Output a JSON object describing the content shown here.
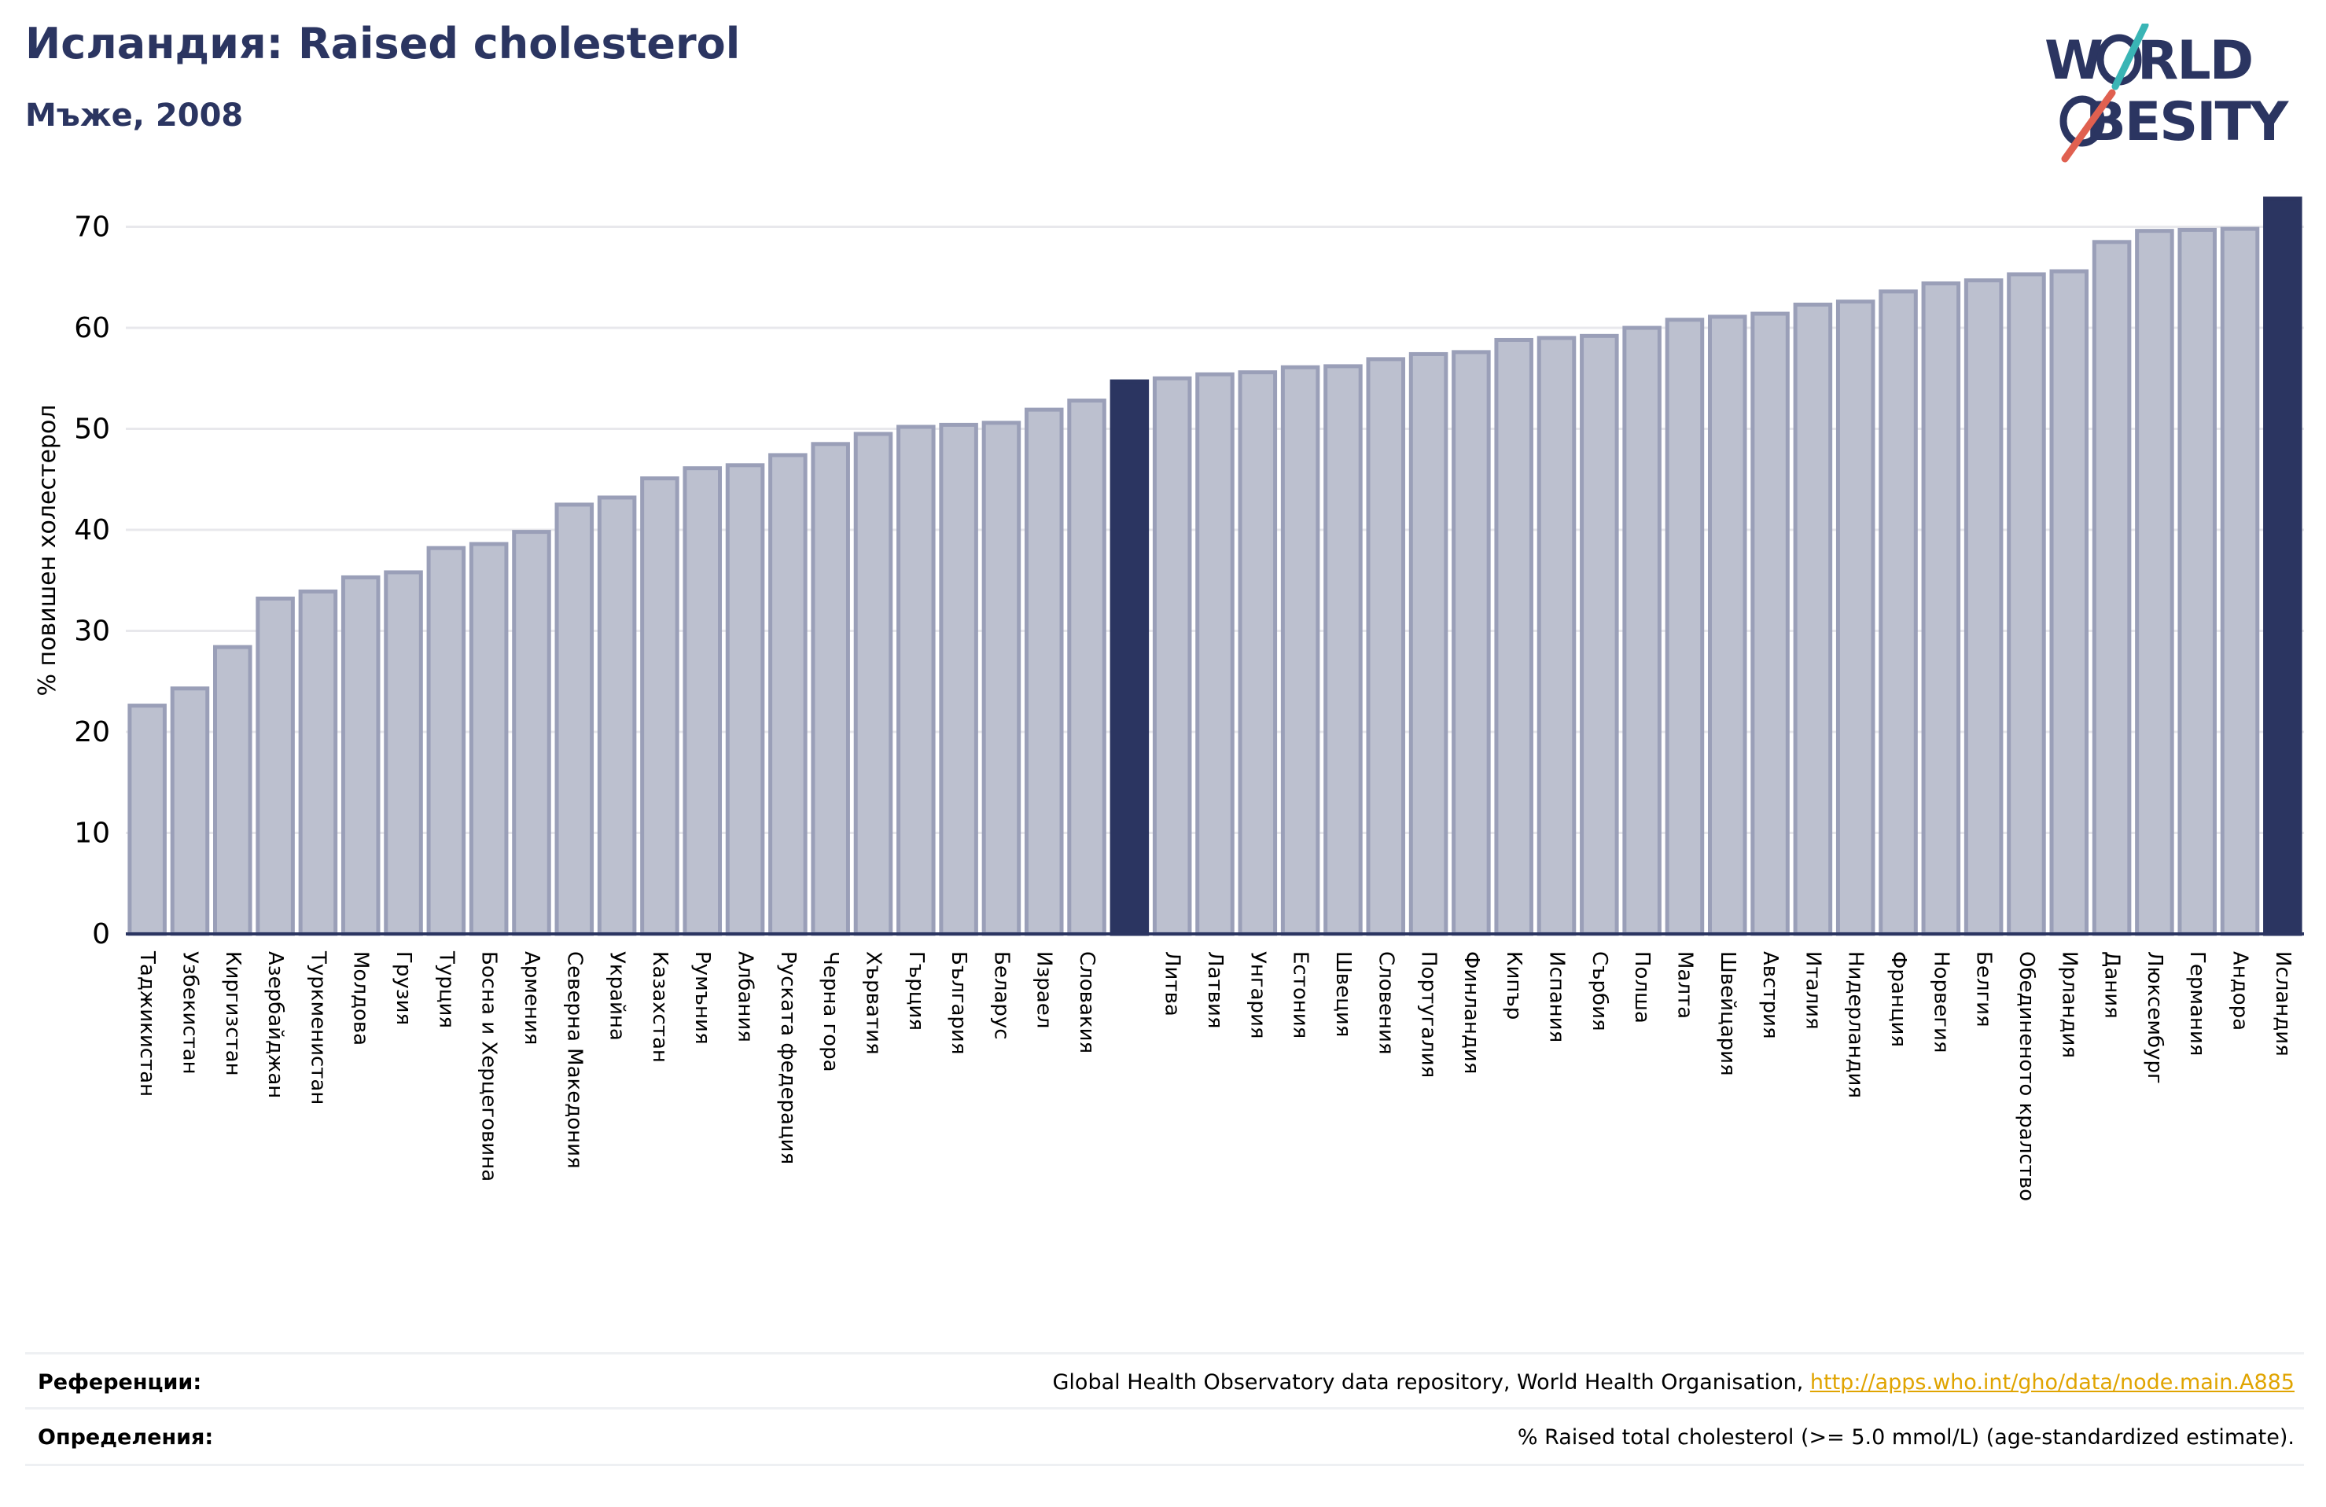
{
  "header": {
    "title": "Исландия: Raised cholesterol",
    "subtitle": "Мъже, 2008"
  },
  "logo": {
    "line1": "W RLD",
    "line2": "BESITY",
    "text_color": "#2b3561",
    "slash_teal": "#3ab5b5",
    "slash_red": "#e06050"
  },
  "colors": {
    "bar_fill": "#bcc0cf",
    "bar_stroke": "#9a9fb8",
    "highlight": "#2b3561",
    "grid": "#e8e8ec"
  },
  "chart_data": {
    "type": "bar",
    "ylabel": "% повишен холестерол",
    "ylim": [
      0,
      73
    ],
    "yticks": [
      0,
      10,
      20,
      30,
      40,
      50,
      60,
      70
    ],
    "grid": true,
    "categories": [
      "Таджикистан",
      "Узбекистан",
      "Киргизстан",
      "Азербайджан",
      "Туркменистан",
      "Молдова",
      "Грузия",
      "Турция",
      "Босна и Херцеговина",
      "Армения",
      "Северна Македония",
      "Украйна",
      "Казахстан",
      "Румъния",
      "Албания",
      "Руската федерация",
      "Черна гора",
      "Хърватия",
      "Гърция",
      "България",
      "Беларус",
      "Израел",
      "Словакия",
      "",
      "Литва",
      "Латвия",
      "Унгария",
      "Естония",
      "Швеция",
      "Словения",
      "Португалия",
      "Финландия",
      "Кипър",
      "Испания",
      "Сърбия",
      "Полша",
      "Малта",
      "Швейцария",
      "Австрия",
      "Италия",
      "Нидерландия",
      "Франция",
      "Норвегия",
      "Белгия",
      "Обединеното кралство",
      "Ирландия",
      "Дания",
      "Люксембург",
      "Германия",
      "Андора",
      "Исландия"
    ],
    "values": [
      22.6,
      24.3,
      28.4,
      33.2,
      33.9,
      35.3,
      35.8,
      38.2,
      38.6,
      39.8,
      42.5,
      43.2,
      45.1,
      46.1,
      46.4,
      47.4,
      48.5,
      49.5,
      50.2,
      50.4,
      50.6,
      51.9,
      52.8,
      54.7,
      55.0,
      55.4,
      55.6,
      56.1,
      56.2,
      56.9,
      57.4,
      57.6,
      58.8,
      59.0,
      59.2,
      60.0,
      60.8,
      61.1,
      61.4,
      62.3,
      62.6,
      63.6,
      64.4,
      64.7,
      65.3,
      65.6,
      68.5,
      69.6,
      69.7,
      69.8,
      72.8
    ],
    "highlight_indices": [
      23,
      50
    ]
  },
  "footer": {
    "references_label": "Референции:",
    "references_text": "Global Health Observatory data repository, World Health Organisation, ",
    "references_link": "http://apps.who.int/gho/data/node.main.A885",
    "definitions_label": "Определения:",
    "definitions_text": "% Raised total cholesterol (>= 5.0 mmol/L) (age-standardized estimate)."
  }
}
